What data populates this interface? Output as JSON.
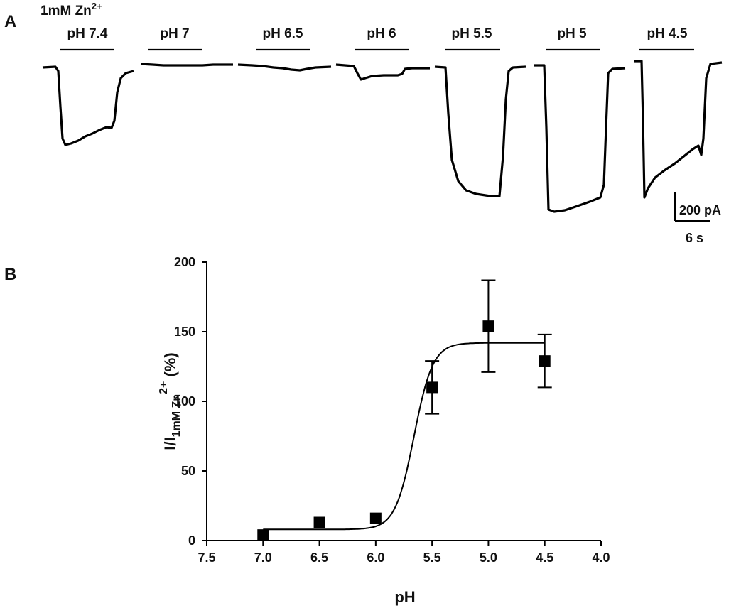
{
  "panel_a": {
    "letter": "A",
    "header": "1mM Zn",
    "header_sup": "2+",
    "conditions": [
      "pH 7.4",
      "pH 7",
      "pH 6.5",
      "pH 6",
      "pH 5.5",
      "pH 5",
      "pH 4.5"
    ],
    "scale_current": "200 pA",
    "scale_time": "6 s"
  },
  "panel_b": {
    "letter": "B"
  },
  "chart_data": {
    "type": "scatter",
    "xlabel": "pH",
    "ylabel_main": "I/I",
    "ylabel_sub": "1mM Zn",
    "ylabel_sup": "2+",
    "ylabel_tail": " (%)",
    "xlim": [
      7.5,
      4.0
    ],
    "ylim": [
      0,
      200
    ],
    "x_reversed": true,
    "x_ticks": [
      "7.5",
      "7.0",
      "6.5",
      "6.0",
      "5.5",
      "5.0",
      "4.5",
      "4.0"
    ],
    "y_ticks": [
      "0",
      "50",
      "100",
      "150",
      "200"
    ],
    "points": [
      {
        "x": 7.0,
        "y": 4,
        "err": 0
      },
      {
        "x": 6.5,
        "y": 13,
        "err": 0
      },
      {
        "x": 6.0,
        "y": 16,
        "err": 0
      },
      {
        "x": 5.5,
        "y": 110,
        "err": 19
      },
      {
        "x": 5.0,
        "y": 154,
        "err": 33
      },
      {
        "x": 4.5,
        "y": 129,
        "err": 19
      }
    ],
    "fit": {
      "bottom": 8,
      "top": 142,
      "pH50": 5.66,
      "slope": 12
    }
  }
}
